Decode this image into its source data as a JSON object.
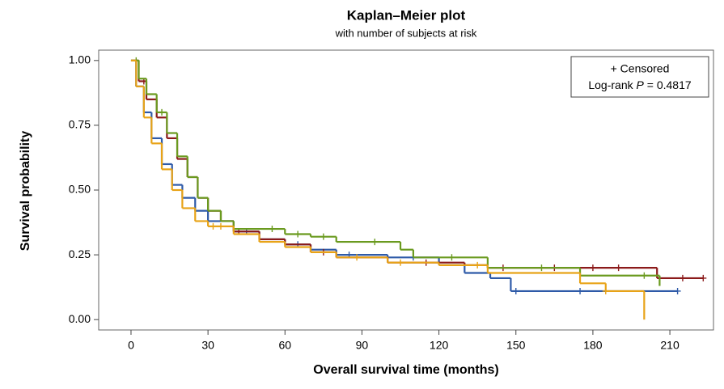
{
  "chart_data": {
    "type": "step",
    "title": "Kaplan–Meier plot",
    "subtitle": "with number of subjects at risk",
    "x_label": "Overall survival time (months)",
    "y_label": "Survival probability",
    "legend_text": "+ Censored",
    "test_label": {
      "prefix": "Log-rank ",
      "symbol": "P",
      "value": " = 0.4817"
    },
    "xlim": [
      -12.6,
      227
    ],
    "ylim": [
      -0.04,
      1.04
    ],
    "xticks": [
      0,
      30,
      60,
      90,
      120,
      150,
      180,
      210
    ],
    "yticks": [
      {
        "value": 0,
        "label": "0.00"
      },
      {
        "value": 0.25,
        "label": "0.25"
      },
      {
        "value": 0.5,
        "label": "0.50"
      },
      {
        "value": 0.75,
        "label": "0.75"
      },
      {
        "value": 1,
        "label": "1.00"
      }
    ],
    "series": [
      {
        "color": "#2e5aa8",
        "x": [
          0,
          2,
          5,
          8,
          12,
          16,
          20,
          25,
          30,
          40,
          50,
          60,
          70,
          80,
          100,
          120,
          130,
          140,
          148,
          213
        ],
        "values": [
          1.0,
          0.9,
          0.8,
          0.7,
          0.6,
          0.52,
          0.47,
          0.42,
          0.38,
          0.34,
          0.31,
          0.29,
          0.27,
          0.25,
          0.24,
          0.21,
          0.18,
          0.16,
          0.11,
          0.11
        ],
        "censor_x": [
          45,
          65,
          85,
          110,
          150,
          175,
          213
        ],
        "censor_values": [
          0.34,
          0.29,
          0.25,
          0.24,
          0.11,
          0.11,
          0.11
        ]
      },
      {
        "color": "#8b1a1a",
        "x": [
          0,
          3,
          6,
          10,
          14,
          18,
          22,
          26,
          30,
          35,
          40,
          50,
          60,
          70,
          80,
          100,
          130,
          139,
          205,
          223
        ],
        "values": [
          1.0,
          0.92,
          0.85,
          0.78,
          0.7,
          0.62,
          0.55,
          0.47,
          0.42,
          0.38,
          0.34,
          0.31,
          0.29,
          0.26,
          0.24,
          0.22,
          0.21,
          0.2,
          0.16,
          0.16
        ],
        "censor_x": [
          5,
          42,
          75,
          115,
          145,
          165,
          180,
          190,
          215,
          223
        ],
        "censor_values": [
          0.92,
          0.34,
          0.26,
          0.22,
          0.2,
          0.2,
          0.2,
          0.2,
          0.16,
          0.16
        ]
      },
      {
        "color": "#6a9a1f",
        "x": [
          0,
          3,
          6,
          10,
          14,
          18,
          22,
          26,
          30,
          35,
          40,
          60,
          70,
          80,
          105,
          110,
          139,
          175,
          206
        ],
        "values": [
          1.0,
          0.93,
          0.87,
          0.8,
          0.72,
          0.63,
          0.55,
          0.47,
          0.42,
          0.38,
          0.35,
          0.33,
          0.32,
          0.3,
          0.27,
          0.24,
          0.2,
          0.17,
          0.13
        ],
        "censor_x": [
          2,
          12,
          55,
          65,
          75,
          95,
          125,
          160,
          200
        ],
        "censor_values": [
          1.0,
          0.8,
          0.35,
          0.33,
          0.32,
          0.3,
          0.24,
          0.2,
          0.17
        ]
      },
      {
        "color": "#e8a317",
        "x": [
          0,
          2,
          5,
          8,
          12,
          16,
          20,
          25,
          30,
          40,
          50,
          60,
          70,
          80,
          100,
          120,
          139,
          175,
          185,
          199,
          200
        ],
        "values": [
          1.0,
          0.9,
          0.78,
          0.68,
          0.58,
          0.5,
          0.43,
          0.38,
          0.36,
          0.33,
          0.3,
          0.28,
          0.26,
          0.24,
          0.22,
          0.21,
          0.18,
          0.14,
          0.11,
          0.11,
          0.0
        ],
        "censor_x": [
          32,
          35,
          88,
          105,
          135,
          185
        ],
        "censor_values": [
          0.36,
          0.36,
          0.24,
          0.22,
          0.21,
          0.11
        ]
      }
    ]
  }
}
